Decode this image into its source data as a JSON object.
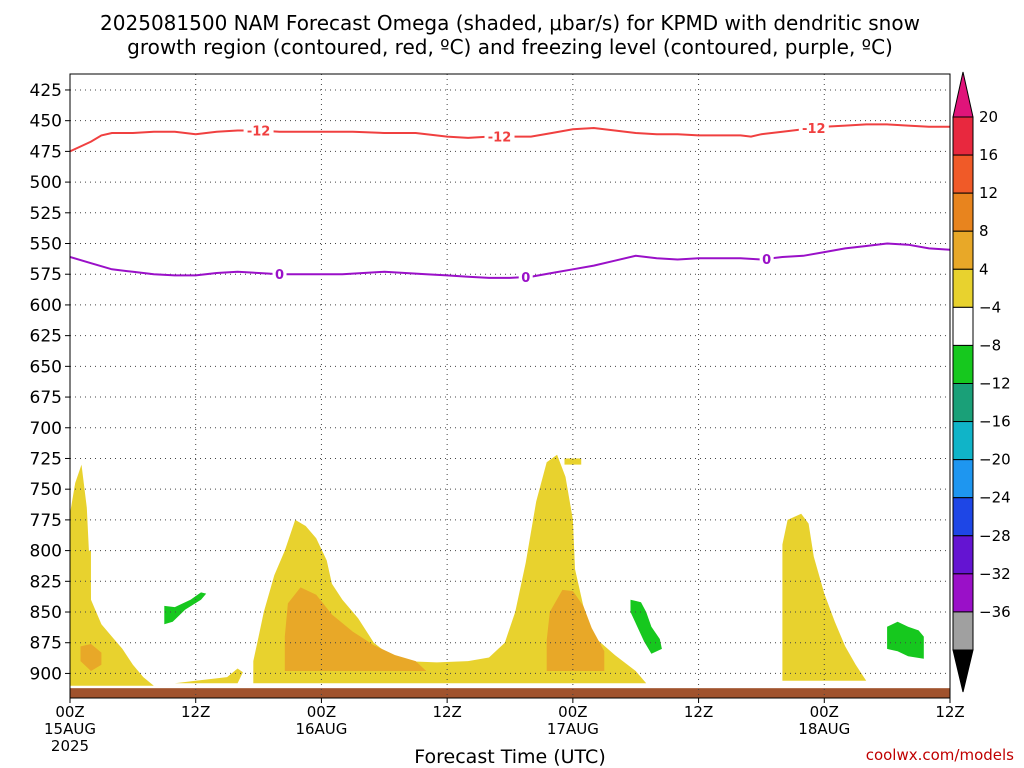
{
  "title_line1": "2025081500 NAM Forecast Omega (shaded, μbar/s) for KPMD with dendritic snow",
  "title_line2": "growth region (contoured, red, ºC) and freezing level (contoured, purple, ºC)",
  "credit": "coolwx.com/models",
  "chart_data": {
    "type": "heatmap",
    "title": "2025081500 NAM Forecast Omega (shaded, μbar/s) for KPMD with dendritic snow growth region (contoured, red, ºC) and freezing level (contoured, purple, ºC)",
    "xlabel": "Forecast Time (UTC)",
    "ylabel": "",
    "x_ticks": [
      {
        "h": 0,
        "time": "00Z",
        "date": "15AUG",
        "year": "2025"
      },
      {
        "h": 12,
        "time": "12Z",
        "date": "",
        "year": ""
      },
      {
        "h": 24,
        "time": "00Z",
        "date": "16AUG",
        "year": ""
      },
      {
        "h": 36,
        "time": "12Z",
        "date": "",
        "year": ""
      },
      {
        "h": 48,
        "time": "00Z",
        "date": "17AUG",
        "year": ""
      },
      {
        "h": 60,
        "time": "12Z",
        "date": "",
        "year": ""
      },
      {
        "h": 72,
        "time": "00Z",
        "date": "18AUG",
        "year": ""
      },
      {
        "h": 84,
        "time": "12Z",
        "date": "",
        "year": ""
      }
    ],
    "xlim": [
      0,
      84
    ],
    "y_ticks": [
      "425",
      "450",
      "475",
      "500",
      "525",
      "550",
      "575",
      "600",
      "625",
      "650",
      "675",
      "700",
      "725",
      "750",
      "775",
      "800",
      "825",
      "850",
      "875",
      "900"
    ],
    "ylim": [
      920,
      412
    ],
    "grid": true,
    "colorbar": {
      "labels": [
        "20",
        "16",
        "12",
        "8",
        "4",
        "−4",
        "−8",
        "−12",
        "−16",
        "−20",
        "−24",
        "−28",
        "−32",
        "−36"
      ],
      "colors": [
        "#e8283e",
        "#f05a28",
        "#e8841e",
        "#e8a828",
        "#e8d22e",
        "#ffffff",
        "#16c81e",
        "#1aa078",
        "#10b4c8",
        "#1e96f0",
        "#1e46e6",
        "#6414d2",
        "#9a10c8",
        "#a0a0a0"
      ],
      "top_triangle": "#e0147a",
      "bottom_triangle": "#000000"
    },
    "series": [
      {
        "name": "-12",
        "color": "#f04040",
        "contour_label": "-12",
        "label_h": [
          18,
          41,
          71
        ],
        "points": [
          [
            0,
            475
          ],
          [
            1,
            471
          ],
          [
            2,
            467
          ],
          [
            3,
            462
          ],
          [
            4,
            460
          ],
          [
            6,
            460
          ],
          [
            8,
            459
          ],
          [
            10,
            459
          ],
          [
            12,
            461
          ],
          [
            14,
            459
          ],
          [
            16,
            458
          ],
          [
            18,
            458
          ],
          [
            20,
            459
          ],
          [
            22,
            459
          ],
          [
            24,
            459
          ],
          [
            27,
            459
          ],
          [
            30,
            460
          ],
          [
            33,
            460
          ],
          [
            36,
            463
          ],
          [
            38,
            464
          ],
          [
            40,
            463
          ],
          [
            42,
            463
          ],
          [
            44,
            463
          ],
          [
            46,
            460
          ],
          [
            48,
            457
          ],
          [
            50,
            456
          ],
          [
            52,
            458
          ],
          [
            54,
            460
          ],
          [
            56,
            461
          ],
          [
            58,
            461
          ],
          [
            60,
            462
          ],
          [
            62,
            462
          ],
          [
            64,
            462
          ],
          [
            65,
            463
          ],
          [
            66,
            461
          ],
          [
            68,
            459
          ],
          [
            70,
            457
          ],
          [
            72,
            455
          ],
          [
            74,
            454
          ],
          [
            76,
            453
          ],
          [
            78,
            453
          ],
          [
            80,
            454
          ],
          [
            82,
            455
          ],
          [
            84,
            455
          ]
        ]
      },
      {
        "name": "0",
        "color": "#9a10c8",
        "contour_label": "0",
        "label_h": [
          20,
          43.5,
          66.5
        ],
        "points": [
          [
            0,
            561
          ],
          [
            2,
            566
          ],
          [
            4,
            571
          ],
          [
            6,
            573
          ],
          [
            8,
            575
          ],
          [
            10,
            576
          ],
          [
            12,
            576
          ],
          [
            14,
            574
          ],
          [
            16,
            573
          ],
          [
            18,
            574
          ],
          [
            20,
            575
          ],
          [
            22,
            575
          ],
          [
            24,
            575
          ],
          [
            26,
            575
          ],
          [
            28,
            574
          ],
          [
            30,
            573
          ],
          [
            32,
            574
          ],
          [
            34,
            575
          ],
          [
            36,
            576
          ],
          [
            38,
            577
          ],
          [
            40,
            578
          ],
          [
            42,
            578
          ],
          [
            44,
            577
          ],
          [
            46,
            574
          ],
          [
            48,
            571
          ],
          [
            50,
            568
          ],
          [
            52,
            564
          ],
          [
            54,
            560
          ],
          [
            56,
            562
          ],
          [
            58,
            563
          ],
          [
            60,
            562
          ],
          [
            62,
            562
          ],
          [
            64,
            562
          ],
          [
            66,
            563
          ],
          [
            68,
            561
          ],
          [
            70,
            560
          ],
          [
            72,
            557
          ],
          [
            74,
            554
          ],
          [
            76,
            552
          ],
          [
            78,
            550
          ],
          [
            80,
            551
          ],
          [
            82,
            554
          ],
          [
            84,
            555
          ]
        ]
      }
    ],
    "omega_regions": [
      {
        "color": "#e8d22e",
        "points": [
          [
            0,
            910
          ],
          [
            0,
            770
          ],
          [
            0.5,
            745
          ],
          [
            1.1,
            730
          ],
          [
            1.6,
            765
          ],
          [
            1.8,
            800
          ],
          [
            2.0,
            840
          ],
          [
            3,
            860
          ],
          [
            4,
            870
          ],
          [
            5,
            880
          ],
          [
            6,
            893
          ],
          [
            7,
            903
          ],
          [
            8,
            910
          ]
        ]
      },
      {
        "color": "#e8a828",
        "points": [
          [
            1,
            890
          ],
          [
            1,
            878
          ],
          [
            2,
            876
          ],
          [
            3,
            883
          ],
          [
            3,
            893
          ],
          [
            2,
            898
          ]
        ]
      },
      {
        "color": "#e8d22e",
        "points": [
          [
            10,
            908
          ],
          [
            12,
            906
          ],
          [
            15,
            903
          ],
          [
            16,
            896
          ],
          [
            16.5,
            899
          ],
          [
            16,
            908
          ]
        ]
      },
      {
        "color": "#e8d22e",
        "points": [
          [
            17.5,
            908
          ],
          [
            17.5,
            890
          ],
          [
            18,
            870
          ],
          [
            18.5,
            850
          ],
          [
            19.5,
            820
          ],
          [
            20.5,
            800
          ],
          [
            21.5,
            775
          ],
          [
            22.5,
            780
          ],
          [
            23.5,
            790
          ],
          [
            24.5,
            808
          ],
          [
            25,
            827
          ],
          [
            26,
            840
          ],
          [
            27.5,
            855
          ],
          [
            29,
            875
          ],
          [
            30.5,
            885
          ],
          [
            32,
            890
          ],
          [
            35,
            891
          ],
          [
            38,
            890
          ],
          [
            40,
            887
          ],
          [
            41.5,
            875
          ],
          [
            42.5,
            850
          ],
          [
            43.5,
            810
          ],
          [
            44.5,
            760
          ],
          [
            45.5,
            728
          ],
          [
            46.5,
            722
          ],
          [
            47.3,
            740
          ],
          [
            48,
            775
          ],
          [
            48.2,
            815
          ],
          [
            49,
            845
          ],
          [
            50,
            870
          ],
          [
            52,
            885
          ],
          [
            54,
            898
          ],
          [
            55,
            908
          ]
        ]
      },
      {
        "color": "#e8a828",
        "points": [
          [
            20.5,
            898
          ],
          [
            20.5,
            870
          ],
          [
            20.8,
            843
          ],
          [
            22,
            830
          ],
          [
            23.5,
            836
          ],
          [
            25,
            852
          ],
          [
            27,
            866
          ],
          [
            29,
            877
          ],
          [
            31,
            885
          ],
          [
            33,
            890
          ],
          [
            34,
            898
          ]
        ]
      },
      {
        "color": "#e8a828",
        "points": [
          [
            45.5,
            898
          ],
          [
            45.5,
            873
          ],
          [
            45.8,
            850
          ],
          [
            47,
            832
          ],
          [
            48,
            833
          ],
          [
            49,
            845
          ],
          [
            49.8,
            863
          ],
          [
            51,
            882
          ],
          [
            51,
            898
          ]
        ]
      },
      {
        "color": "#e8d22e",
        "points": [
          [
            68,
            906
          ],
          [
            68,
            795
          ],
          [
            68.5,
            775
          ],
          [
            69.8,
            770
          ],
          [
            70.5,
            778
          ],
          [
            71,
            805
          ],
          [
            72,
            835
          ],
          [
            73,
            858
          ],
          [
            74,
            878
          ],
          [
            75,
            893
          ],
          [
            76,
            906
          ]
        ]
      }
    ],
    "omega_bars": [
      {
        "color": "#e8d22e",
        "h0": 47.2,
        "h1": 48.8,
        "p0": 725,
        "p1": 730
      },
      {
        "color": "#e8d22e",
        "h0": 1.5,
        "h1": 2.0,
        "p0": 800,
        "p1": 850
      }
    ],
    "neg_regions": [
      {
        "color": "#16c81e",
        "points": [
          [
            9,
            860
          ],
          [
            9,
            845
          ],
          [
            10,
            846
          ],
          [
            11.5,
            840
          ],
          [
            12.5,
            834
          ],
          [
            13,
            835
          ],
          [
            12.5,
            840
          ],
          [
            11,
            848
          ],
          [
            9.8,
            858
          ]
        ]
      },
      {
        "color": "#16c81e",
        "points": [
          [
            53.5,
            850
          ],
          [
            53.5,
            840
          ],
          [
            54.5,
            842
          ],
          [
            55,
            850
          ],
          [
            55.5,
            862
          ],
          [
            56.3,
            872
          ],
          [
            56.5,
            880
          ],
          [
            55.5,
            884
          ],
          [
            54.8,
            874
          ]
        ]
      },
      {
        "color": "#16c81e",
        "points": [
          [
            78,
            880
          ],
          [
            78,
            862
          ],
          [
            79,
            858
          ],
          [
            80,
            862
          ],
          [
            81,
            865
          ],
          [
            81.5,
            870
          ],
          [
            81.5,
            888
          ],
          [
            80,
            886
          ],
          [
            79,
            882
          ]
        ]
      }
    ],
    "terrain": {
      "color": "#a0522d",
      "p0": 912,
      "p1": 920
    }
  }
}
